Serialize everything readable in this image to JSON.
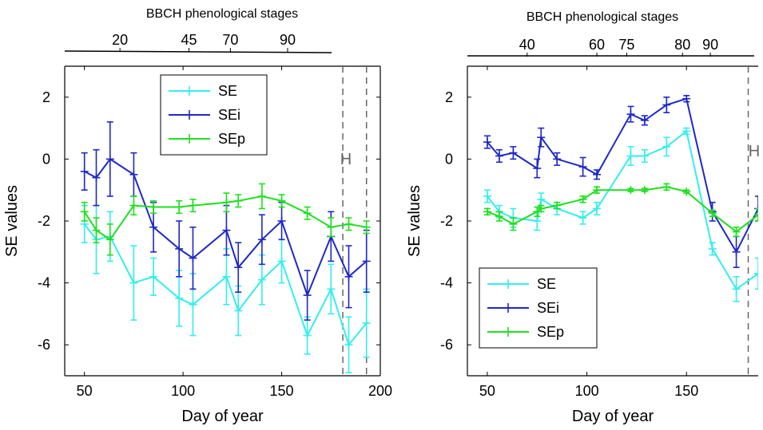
{
  "chart_data": [
    {
      "type": "line",
      "xlabel": "Day of year",
      "ylabel": "SE values",
      "xlim": [
        40,
        200
      ],
      "ylim": [
        -7,
        3
      ],
      "xticks": [
        "50",
        "100",
        "150",
        "200"
      ],
      "yticks": [
        "2",
        "0",
        "-2",
        "-4",
        "-6"
      ],
      "bbch_title": "BBCH phenological stages",
      "bbch_ticks": [
        {
          "label": "20",
          "x": 68
        },
        {
          "label": "45",
          "x": 103
        },
        {
          "label": "70",
          "x": 124
        },
        {
          "label": "90",
          "x": 153
        }
      ],
      "harvest_label": "H",
      "harvest_lines": [
        181,
        193
      ],
      "legend": [
        "SE",
        "SEi",
        "SEp"
      ],
      "legend_position": "top-center",
      "series": [
        {
          "name": "SE",
          "color": "#33eeee",
          "x": [
            50,
            56,
            63,
            75,
            85,
            98,
            105,
            122,
            128,
            140,
            150,
            163,
            175,
            184,
            193
          ],
          "y": [
            -2.1,
            -2.6,
            -2.5,
            -4.0,
            -3.8,
            -4.5,
            -4.7,
            -3.8,
            -4.9,
            -3.9,
            -3.3,
            -5.7,
            -4.2,
            -6.0,
            -5.3
          ],
          "err": [
            0.6,
            1.1,
            0.8,
            1.2,
            0.6,
            0.9,
            1.0,
            0.9,
            0.8,
            0.8,
            0.7,
            0.6,
            0.8,
            0.9,
            1.1
          ]
        },
        {
          "name": "SEi",
          "color": "#1e28c8",
          "x": [
            50,
            56,
            63,
            75,
            85,
            98,
            105,
            122,
            128,
            140,
            150,
            163,
            175,
            184,
            193
          ],
          "y": [
            -0.4,
            -0.6,
            0.0,
            -0.5,
            -2.2,
            -2.9,
            -3.2,
            -2.3,
            -3.5,
            -2.6,
            -2.0,
            -4.4,
            -2.5,
            -3.8,
            -3.3
          ],
          "err": [
            0.6,
            0.9,
            1.2,
            0.7,
            0.8,
            0.9,
            1.0,
            0.8,
            0.8,
            0.8,
            0.6,
            0.8,
            0.8,
            1.0,
            1.0
          ]
        },
        {
          "name": "SEp",
          "color": "#1ee01e",
          "x": [
            50,
            56,
            63,
            75,
            85,
            98,
            105,
            122,
            128,
            140,
            150,
            163,
            175,
            184,
            193
          ],
          "y": [
            -1.7,
            -2.3,
            -2.6,
            -1.5,
            -1.55,
            -1.55,
            -1.5,
            -1.4,
            -1.35,
            -1.2,
            -1.35,
            -1.75,
            -2.2,
            -2.1,
            -2.2
          ],
          "err": [
            0.3,
            0.4,
            0.5,
            0.3,
            0.2,
            0.2,
            0.2,
            0.3,
            0.2,
            0.4,
            0.2,
            0.2,
            0.3,
            0.2,
            0.2
          ]
        }
      ]
    },
    {
      "type": "line",
      "xlabel": "Day of year",
      "ylabel": "SE values",
      "xlim": [
        40,
        186
      ],
      "ylim": [
        -7,
        3
      ],
      "xticks": [
        "50",
        "100",
        "150"
      ],
      "yticks": [
        "2",
        "0",
        "-2",
        "-4",
        "-6"
      ],
      "bbch_title": "BBCH phenological stages",
      "bbch_ticks": [
        {
          "label": "40",
          "x": 70
        },
        {
          "label": "60",
          "x": 105
        },
        {
          "label": "75",
          "x": 120
        },
        {
          "label": "80",
          "x": 148
        },
        {
          "label": "90",
          "x": 162
        }
      ],
      "harvest_label": "H",
      "harvest_lines": [
        181
      ],
      "legend": [
        "SE",
        "SEi",
        "SEp"
      ],
      "legend_position": "bottom-left",
      "series": [
        {
          "name": "SE",
          "color": "#33eeee",
          "x": [
            50,
            56,
            63,
            75,
            77,
            85,
            98,
            105,
            122,
            129,
            140,
            150,
            163,
            175,
            186
          ],
          "y": [
            -1.2,
            -1.7,
            -1.9,
            -2.0,
            -1.3,
            -1.6,
            -1.9,
            -1.6,
            0.1,
            0.1,
            0.4,
            0.9,
            -2.9,
            -4.2,
            -3.7
          ],
          "err": [
            0.2,
            0.2,
            0.3,
            0.3,
            0.2,
            0.2,
            0.2,
            0.2,
            0.3,
            0.2,
            0.3,
            0.1,
            0.2,
            0.4,
            0.5
          ]
        },
        {
          "name": "SEi",
          "color": "#1e28c8",
          "x": [
            50,
            56,
            63,
            75,
            77,
            85,
            98,
            105,
            122,
            129,
            140,
            150,
            163,
            175,
            186
          ],
          "y": [
            0.55,
            0.1,
            0.2,
            -0.3,
            0.7,
            0.0,
            -0.25,
            -0.5,
            1.45,
            1.25,
            1.75,
            1.95,
            -1.7,
            -3.0,
            -1.6
          ],
          "err": [
            0.2,
            0.2,
            0.2,
            0.3,
            0.3,
            0.2,
            0.3,
            0.15,
            0.25,
            0.15,
            0.25,
            0.1,
            0.3,
            0.5,
            0.4
          ]
        },
        {
          "name": "SEp",
          "color": "#1ee01e",
          "x": [
            50,
            56,
            63,
            75,
            77,
            85,
            98,
            105,
            122,
            129,
            140,
            150,
            163,
            175,
            186
          ],
          "y": [
            -1.7,
            -1.85,
            -2.1,
            -1.7,
            -1.6,
            -1.5,
            -1.3,
            -1.0,
            -1.0,
            -1.0,
            -0.9,
            -1.05,
            -1.75,
            -2.35,
            -1.8
          ],
          "err": [
            0.1,
            0.15,
            0.2,
            0.15,
            0.1,
            0.1,
            0.1,
            0.1,
            0.05,
            0.05,
            0.1,
            0.05,
            0.1,
            0.15,
            0.2
          ]
        }
      ]
    }
  ]
}
